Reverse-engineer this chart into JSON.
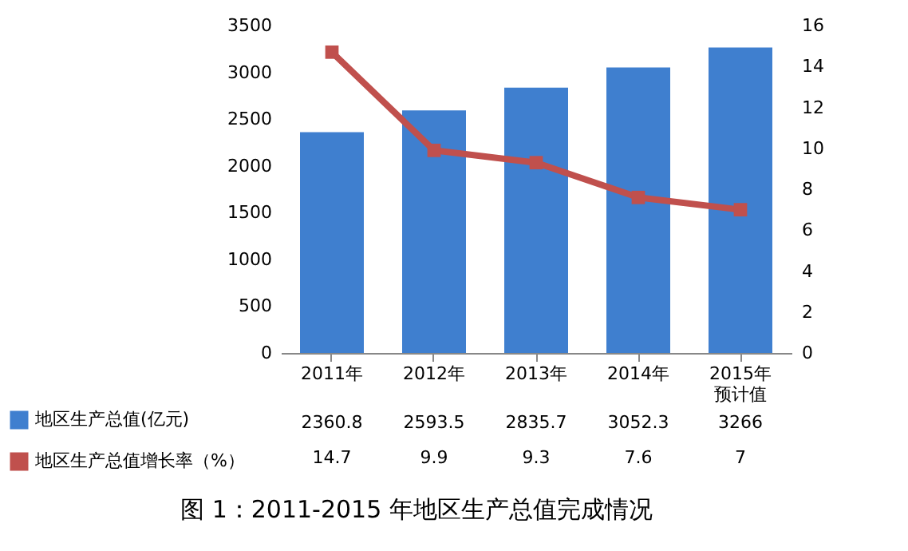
{
  "chart_data": {
    "type": "bar",
    "title": "图 1：2011-2015 年地区生产总值完成情况",
    "categories": [
      "2011年",
      "2012年",
      "2013年",
      "2014年",
      "2015年预计值"
    ],
    "series": [
      {
        "name": "地区生产总值(亿元)",
        "color": "#3f7fcf",
        "values": [
          2360.8,
          2593.5,
          2835.7,
          3052.3,
          3266
        ]
      },
      {
        "name": "地区生产总值增长率（%）",
        "type": "line",
        "axis": "y2",
        "color": "#c0504d",
        "values": [
          14.7,
          9.9,
          9.3,
          7.6,
          7
        ]
      }
    ],
    "ylim": [
      0,
      3500
    ],
    "yticks": [
      0,
      500,
      1000,
      1500,
      2000,
      2500,
      3000,
      3500
    ],
    "y2lim": [
      0,
      16
    ],
    "y2ticks": [
      0,
      2,
      4,
      6,
      8,
      10,
      12,
      14,
      16
    ],
    "marker": "square",
    "line_style": "solid",
    "data_labels": true,
    "legend": "bottom left"
  }
}
